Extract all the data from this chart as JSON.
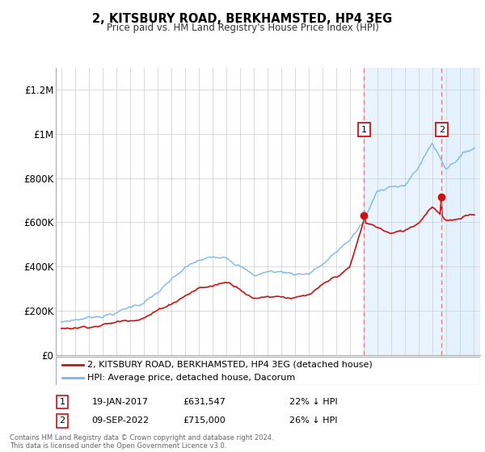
{
  "title": "2, KITSBURY ROAD, BERKHAMSTED, HP4 3EG",
  "subtitle": "Price paid vs. HM Land Registry's House Price Index (HPI)",
  "sale1_date": "19-JAN-2017",
  "sale1_price": 631547,
  "sale1_note": "22% ↓ HPI",
  "sale2_date": "09-SEP-2022",
  "sale2_price": 715000,
  "sale2_note": "26% ↓ HPI",
  "sale1_year": 2017.05,
  "sale2_year": 2022.69,
  "legend_entry1": "2, KITSBURY ROAD, BERKHAMSTED, HP4 3EG (detached house)",
  "legend_entry2": "HPI: Average price, detached house, Dacorum",
  "footer": "Contains HM Land Registry data © Crown copyright and database right 2024.\nThis data is licensed under the Open Government Licence v3.0.",
  "hpi_color": "#7ab8e8",
  "price_color": "#cc1111",
  "dashed_line_color": "#e08080",
  "annotation_bg": "#ddeeff",
  "ylim_min": 0,
  "ylim_max": 1300000,
  "xmin": 1994.6,
  "xmax": 2025.5,
  "hpi_key_years": [
    1995,
    1996,
    1997,
    1998,
    1999,
    2000,
    2001,
    2002,
    2003,
    2004,
    2005,
    2006,
    2007,
    2008,
    2009,
    2010,
    2011,
    2012,
    2013,
    2014,
    2015,
    2016,
    2017,
    2018,
    2019,
    2020,
    2021,
    2022,
    2023,
    2024,
    2025
  ],
  "hpi_vals": [
    145000,
    158000,
    170000,
    185000,
    200000,
    225000,
    250000,
    290000,
    340000,
    390000,
    420000,
    430000,
    450000,
    420000,
    370000,
    390000,
    390000,
    385000,
    390000,
    430000,
    480000,
    540000,
    620000,
    750000,
    790000,
    780000,
    870000,
    980000,
    870000,
    930000,
    970000
  ],
  "prop_key_years": [
    1995,
    1996,
    1997,
    1998,
    1999,
    2000,
    2001,
    2002,
    2003,
    2004,
    2005,
    2006,
    2007,
    2008,
    2009,
    2010,
    2011,
    2012,
    2013,
    2014,
    2015,
    2016,
    2017,
    2018,
    2019,
    2020,
    2021,
    2022,
    2023,
    2024,
    2025
  ],
  "prop_vals": [
    120000,
    128000,
    138000,
    150000,
    160000,
    175000,
    195000,
    225000,
    260000,
    300000,
    335000,
    345000,
    365000,
    345000,
    300000,
    315000,
    320000,
    315000,
    320000,
    355000,
    390000,
    430000,
    631547,
    610000,
    580000,
    590000,
    630000,
    715000,
    660000,
    660000,
    680000
  ]
}
